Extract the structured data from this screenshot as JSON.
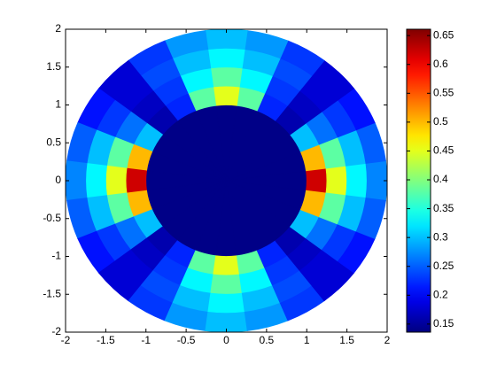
{
  "chart_data": {
    "type": "polar_heatmap",
    "r_edges": [
      0,
      1,
      1.25,
      1.5,
      1.75,
      2
    ],
    "theta": [
      0,
      15,
      30,
      45,
      60,
      75,
      90,
      105,
      120,
      135,
      150,
      165,
      180,
      195,
      210,
      225,
      240,
      255,
      270,
      285,
      300,
      315,
      330,
      345
    ],
    "values": [
      [
        0.14,
        0.14,
        0.14,
        0.14,
        0.14,
        0.14,
        0.14,
        0.14,
        0.14,
        0.14,
        0.14,
        0.14,
        0.14,
        0.14,
        0.14,
        0.14,
        0.14,
        0.14,
        0.14,
        0.14,
        0.14,
        0.14,
        0.14,
        0.14
      ],
      [
        0.62,
        0.5,
        0.3,
        0.16,
        0.22,
        0.38,
        0.45,
        0.38,
        0.22,
        0.16,
        0.3,
        0.5,
        0.62,
        0.5,
        0.3,
        0.16,
        0.22,
        0.38,
        0.45,
        0.38,
        0.22,
        0.16,
        0.3,
        0.5
      ],
      [
        0.45,
        0.38,
        0.26,
        0.17,
        0.23,
        0.33,
        0.38,
        0.33,
        0.23,
        0.17,
        0.26,
        0.38,
        0.45,
        0.38,
        0.26,
        0.17,
        0.23,
        0.33,
        0.38,
        0.33,
        0.23,
        0.17,
        0.26,
        0.38
      ],
      [
        0.33,
        0.3,
        0.23,
        0.18,
        0.24,
        0.3,
        0.33,
        0.3,
        0.24,
        0.18,
        0.23,
        0.3,
        0.33,
        0.3,
        0.23,
        0.18,
        0.24,
        0.3,
        0.33,
        0.3,
        0.24,
        0.18,
        0.23,
        0.3
      ],
      [
        0.27,
        0.25,
        0.21,
        0.18,
        0.23,
        0.28,
        0.3,
        0.28,
        0.23,
        0.18,
        0.21,
        0.25,
        0.27,
        0.25,
        0.21,
        0.18,
        0.23,
        0.28,
        0.3,
        0.28,
        0.23,
        0.18,
        0.21,
        0.25
      ]
    ],
    "xlim": [
      -2,
      2
    ],
    "ylim": [
      -2,
      2
    ],
    "xticks": [
      -2,
      -1.5,
      -1,
      -0.5,
      0,
      0.5,
      1,
      1.5,
      2
    ],
    "yticks": [
      -2,
      -1.5,
      -1,
      -0.5,
      0,
      0.5,
      1,
      1.5,
      2
    ],
    "clim": [
      0.136,
      0.661
    ],
    "cticks": [
      0.15,
      0.2,
      0.25,
      0.3,
      0.35,
      0.4,
      0.45,
      0.5,
      0.55,
      0.6,
      0.65
    ],
    "colormap": "jet"
  }
}
